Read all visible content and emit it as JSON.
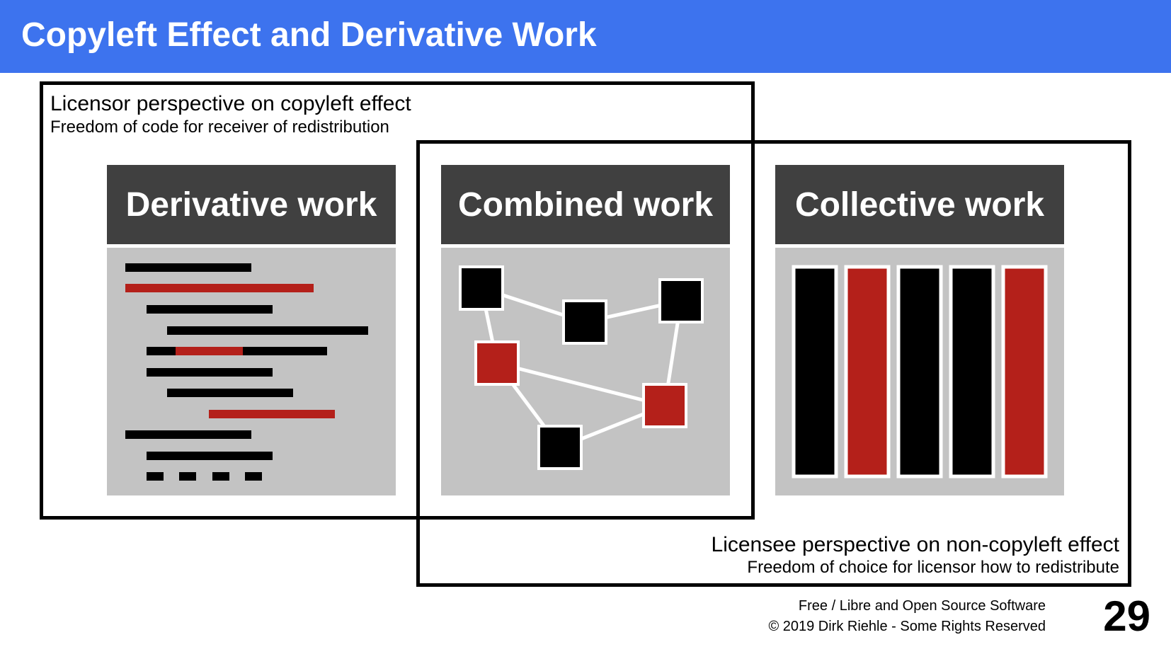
{
  "header": {
    "title": "Copyleft Effect and Derivative Work",
    "background": "#3d73ee"
  },
  "licensor": {
    "title": "Licensor perspective on copyleft effect",
    "subtitle": "Freedom of code for receiver of redistribution"
  },
  "licensee": {
    "title": "Licensee perspective on non-copyleft effect",
    "subtitle": "Freedom of choice for licensor how to redistribute"
  },
  "panels": [
    {
      "title": "Derivative work"
    },
    {
      "title": "Combined work"
    },
    {
      "title": "Collective work"
    }
  ],
  "colors": {
    "accent_red": "#b4201a",
    "panel_head": "#404040",
    "panel_body": "#c3c3c3"
  },
  "footer": {
    "line1": "Free / Libre and Open Source Software",
    "line2": "© 2019 Dirk Riehle - Some Rights Reserved",
    "page_number": "29"
  }
}
